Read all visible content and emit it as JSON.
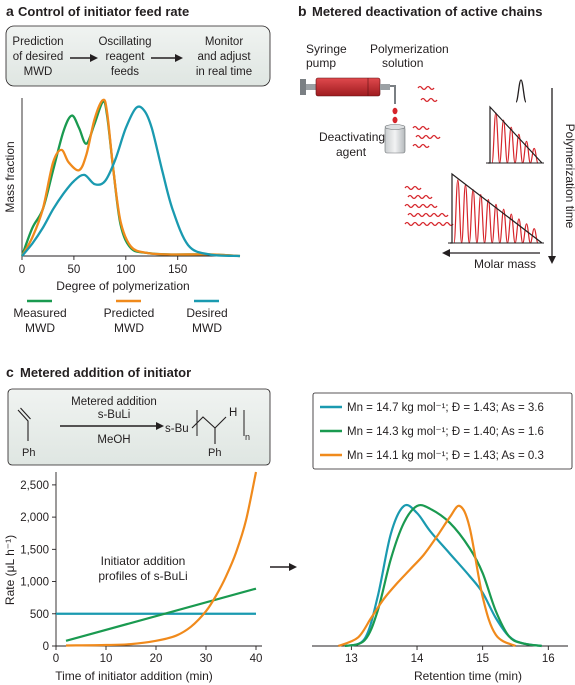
{
  "panel_a": {
    "letter": "a",
    "title": "Control of initiator feed rate",
    "flow": [
      {
        "line1": "Prediction",
        "line2": "of desired",
        "line3": "MWD"
      },
      {
        "line1": "Oscillating",
        "line2": "reagent",
        "line3": "feeds"
      },
      {
        "line1": "Monitor",
        "line2": "and adjust",
        "line3": "in real time"
      }
    ],
    "chart_data": {
      "type": "line",
      "xlabel": "Degree of polymerization",
      "ylabel": "Mass fraction",
      "xlim": [
        0,
        210
      ],
      "xticks": [
        "0",
        "50",
        "100",
        "150"
      ],
      "series": [
        {
          "name": "Measured MWD",
          "color": "#1a9a50",
          "x": [
            0,
            10,
            20,
            30,
            40,
            48,
            55,
            62,
            70,
            78,
            82,
            88,
            95,
            105,
            120,
            140,
            180,
            210
          ],
          "y": [
            0,
            0.18,
            0.3,
            0.55,
            0.8,
            0.9,
            0.82,
            0.72,
            0.85,
            0.99,
            0.9,
            0.55,
            0.2,
            0.05,
            0.02,
            0.01,
            0.01,
            0
          ]
        },
        {
          "name": "Predicted MWD",
          "color": "#f08a1c",
          "x": [
            0,
            10,
            20,
            30,
            38,
            45,
            55,
            62,
            70,
            78,
            82,
            88,
            95,
            105,
            120,
            140,
            180,
            210
          ],
          "y": [
            0,
            0.12,
            0.3,
            0.6,
            0.68,
            0.6,
            0.55,
            0.65,
            0.88,
            1.0,
            0.92,
            0.55,
            0.22,
            0.06,
            0.02,
            0.01,
            0.01,
            0
          ]
        },
        {
          "name": "Desired MWD",
          "color": "#1a9ab0",
          "x": [
            0,
            10,
            20,
            30,
            40,
            50,
            60,
            70,
            80,
            90,
            100,
            110,
            118,
            125,
            135,
            145,
            160,
            180,
            210
          ],
          "y": [
            0,
            0.08,
            0.18,
            0.3,
            0.4,
            0.48,
            0.52,
            0.46,
            0.48,
            0.62,
            0.82,
            0.95,
            0.93,
            0.82,
            0.55,
            0.3,
            0.07,
            0.01,
            0
          ]
        }
      ]
    },
    "legend": [
      {
        "line1": "Measured",
        "line2": "MWD",
        "color": "#1a9a50"
      },
      {
        "line1": "Predicted",
        "line2": "MWD",
        "color": "#f08a1c"
      },
      {
        "line1": "Desired",
        "line2": "MWD",
        "color": "#1a9ab0"
      }
    ]
  },
  "panel_b": {
    "letter": "b",
    "title": "Metered deactivation of active chains",
    "syringe_label1": "Syringe",
    "syringe_label2": "pump",
    "solution_label1": "Polymerization",
    "solution_label2": "solution",
    "agent_label1": "Deactivating",
    "agent_label2": "agent",
    "time_label": "Polymerization time",
    "mass_label": "Molar mass",
    "accent_color": "#d6252b"
  },
  "panel_c": {
    "letter": "c",
    "title": "Metered addition of initiator",
    "scheme": {
      "above_arrow1": "Metered addition",
      "above_arrow2": "s-BuLi",
      "below_arrow": "MeOH",
      "ph_left": "Ph",
      "ph_right": "Ph",
      "sbu": "s-Bu",
      "h": "H",
      "n": "n"
    },
    "rate_chart": {
      "type": "line",
      "ylabel": "Rate (μL h⁻¹)",
      "xlabel": "Time of initiator addition (min)",
      "annotation1": "Initiator addition",
      "annotation2": "profiles of s-BuLi",
      "xlim": [
        0,
        40
      ],
      "ylim": [
        0,
        2700
      ],
      "xticks": [
        "0",
        "10",
        "20",
        "30",
        "40"
      ],
      "yticks": [
        "0",
        "500",
        "1,000",
        "1,500",
        "2,000",
        "2,500"
      ],
      "series": [
        {
          "color": "#1a9ab0",
          "x": [
            0,
            40
          ],
          "y": [
            500,
            500
          ]
        },
        {
          "color": "#1a9a50",
          "x": [
            2,
            40
          ],
          "y": [
            80,
            890
          ]
        },
        {
          "color": "#f08a1c",
          "x": [
            2,
            10,
            15,
            20,
            24,
            27,
            30,
            32,
            34,
            36,
            38,
            40
          ],
          "y": [
            8,
            15,
            30,
            80,
            160,
            300,
            540,
            780,
            1080,
            1450,
            1950,
            2700
          ]
        }
      ]
    },
    "gpc_chart": {
      "type": "line",
      "xlabel": "Retention time (min)",
      "xlim": [
        12.4,
        16.3
      ],
      "xticks": [
        "13",
        "14",
        "15",
        "16"
      ],
      "legend": [
        {
          "text": "Mn = 14.7 kg mol⁻¹; Đ = 1.43; As = 3.6",
          "color": "#1a9ab0"
        },
        {
          "text": "Mn = 14.3 kg mol⁻¹; Đ = 1.40; As = 1.6",
          "color": "#1a9a50"
        },
        {
          "text": "Mn = 14.1 kg mol⁻¹; Đ = 1.43; As = 0.3",
          "color": "#f08a1c"
        }
      ],
      "series": [
        {
          "color": "#1a9ab0",
          "x": [
            12.9,
            13.2,
            13.4,
            13.6,
            13.8,
            14.0,
            14.2,
            14.5,
            14.8,
            15.0,
            15.2,
            15.4,
            15.6,
            15.9
          ],
          "y": [
            0,
            0.05,
            0.35,
            0.8,
            1.0,
            0.95,
            0.82,
            0.66,
            0.5,
            0.38,
            0.2,
            0.07,
            0.02,
            0
          ]
        },
        {
          "color": "#1a9a50",
          "x": [
            12.9,
            13.2,
            13.4,
            13.6,
            13.8,
            14.0,
            14.2,
            14.5,
            14.8,
            15.0,
            15.2,
            15.4,
            15.6,
            15.9
          ],
          "y": [
            0,
            0.04,
            0.25,
            0.62,
            0.88,
            1.0,
            0.98,
            0.88,
            0.7,
            0.52,
            0.25,
            0.07,
            0.02,
            0
          ]
        },
        {
          "color": "#f08a1c",
          "x": [
            12.8,
            13.1,
            13.3,
            13.5,
            13.7,
            13.9,
            14.1,
            14.3,
            14.5,
            14.65,
            14.8,
            15.0,
            15.2,
            15.5
          ],
          "y": [
            0,
            0.06,
            0.2,
            0.34,
            0.45,
            0.55,
            0.65,
            0.78,
            0.92,
            1.0,
            0.85,
            0.35,
            0.08,
            0
          ]
        }
      ]
    }
  }
}
